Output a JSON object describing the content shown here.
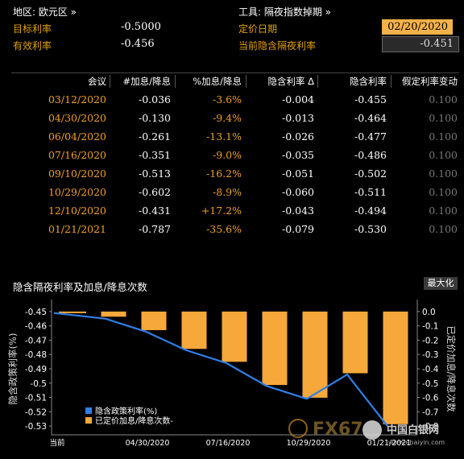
{
  "header": {
    "region_label": "地区: 欧元区 »",
    "tool_label": "工具: 隔夜指数掉期 »",
    "target_rate_label": "目标利率",
    "target_rate_value": "-0.5000",
    "effective_rate_label": "有效利率",
    "effective_rate_value": "-0.456",
    "pricing_date_label": "定价日期",
    "pricing_date_value": "02/20/2020",
    "implied_overnight_label": "当前隐含隔夜利率",
    "implied_overnight_value": "-0.451"
  },
  "table": {
    "columns": [
      "会议",
      "#加息/降息",
      "%加息/降息",
      "隐含利率 Δ",
      "隐含利率",
      "假定利率变动"
    ],
    "rows": [
      [
        "03/12/2020",
        "-0.036",
        "-3.6%",
        "-0.004",
        "-0.455",
        "0.100"
      ],
      [
        "04/30/2020",
        "-0.130",
        "-9.4%",
        "-0.013",
        "-0.464",
        "0.100"
      ],
      [
        "06/04/2020",
        "-0.261",
        "-13.1%",
        "-0.026",
        "-0.477",
        "0.100"
      ],
      [
        "07/16/2020",
        "-0.351",
        "-9.0%",
        "-0.035",
        "-0.486",
        "0.100"
      ],
      [
        "09/10/2020",
        "-0.513",
        "-16.2%",
        "-0.051",
        "-0.502",
        "0.100"
      ],
      [
        "10/29/2020",
        "-0.602",
        "-8.9%",
        "-0.060",
        "-0.511",
        "0.100"
      ],
      [
        "12/10/2020",
        "-0.431",
        "+17.2%",
        "-0.043",
        "-0.494",
        "0.100"
      ],
      [
        "01/21/2021",
        "-0.787",
        "-35.6%",
        "-0.079",
        "-0.530",
        "0.100"
      ]
    ]
  },
  "chart_panel": {
    "title": "隐含隔夜利率及加息/降息次数",
    "zoom_button": "最大化",
    "left_axis_title": "隐含政策利率(%)",
    "right_axis_title": "已定价加息/降息次数",
    "legend_line": "隐含政策利率(%)",
    "legend_bar": "已定价加息/降息次数-",
    "watermark_fx": "FX67",
    "watermark_site": "中国白银网",
    "watermark_url": "www.ebaiyin.com"
  },
  "chart_data": {
    "type": "bar",
    "categories": [
      "当前",
      "03/12/2020",
      "04/30/2020",
      "06/04/2020",
      "07/16/2020",
      "09/10/2020",
      "10/29/2020",
      "12/10/2020",
      "01/21/2021"
    ],
    "x_tick_labels": [
      "当前",
      "04/30/2020",
      "07/16/2020",
      "10/29/2020",
      "01/21/2021"
    ],
    "series": [
      {
        "name": "隐含政策利率(%)",
        "type": "line",
        "axis": "left",
        "values": [
          -0.451,
          -0.455,
          -0.464,
          -0.477,
          -0.486,
          -0.502,
          -0.511,
          -0.494,
          -0.53
        ]
      },
      {
        "name": "已定价加息/降息次数-",
        "type": "bar",
        "axis": "right",
        "values": [
          null,
          -0.036,
          -0.13,
          -0.261,
          -0.351,
          -0.513,
          -0.602,
          -0.431,
          -0.787
        ]
      }
    ],
    "left_ticks": [
      "-0.45",
      "-0.46",
      "-0.47",
      "-0.48",
      "-0.49",
      "-0.5",
      "-0.51",
      "-0.52",
      "-0.53"
    ],
    "right_ticks": [
      "0.0",
      "-0.1",
      "-0.2",
      "-0.3",
      "-0.4",
      "-0.5",
      "-0.6",
      "-0.7",
      "-0.8"
    ],
    "ylim_left": [
      -0.535,
      -0.445
    ],
    "ylim_right": [
      -0.85,
      0.05
    ],
    "colors": {
      "line": "#2f7fe8",
      "bar": "#f7a83a",
      "axis_text": "#e8a030"
    }
  }
}
